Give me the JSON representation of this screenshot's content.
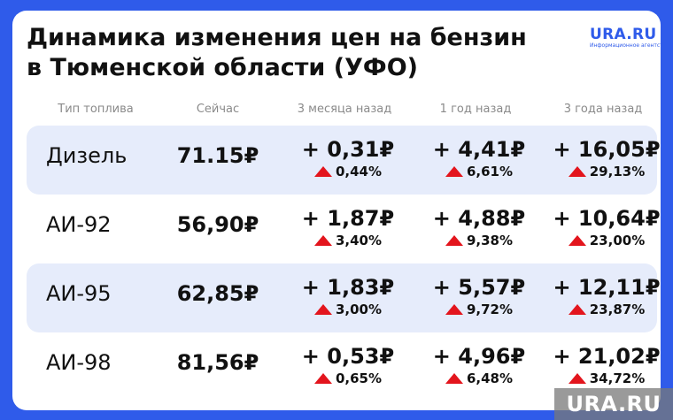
{
  "title_line1": "Динамика изменения цен на бензин",
  "title_line2": "в Тюменской области (УФО)",
  "brand": {
    "name": "URA.RU",
    "tagline": "Информационное агентство"
  },
  "columns": [
    "Тип топлива",
    "Сейчас",
    "3 месяца назад",
    "1 год назад",
    "3 года назад"
  ],
  "rows": [
    {
      "fuel": "Дизель",
      "now": "71.15₽",
      "changes": [
        {
          "abs": "+ 0,31₽",
          "pct": "0,44%"
        },
        {
          "abs": "+ 4,41₽",
          "pct": "6,61%"
        },
        {
          "abs": "+ 16,05₽",
          "pct": "29,13%"
        }
      ]
    },
    {
      "fuel": "АИ-92",
      "now": "56,90₽",
      "changes": [
        {
          "abs": "+ 1,87₽",
          "pct": "3,40%"
        },
        {
          "abs": "+ 4,88₽",
          "pct": "9,38%"
        },
        {
          "abs": "+ 10,64₽",
          "pct": "23,00%"
        }
      ]
    },
    {
      "fuel": "АИ-95",
      "now": "62,85₽",
      "changes": [
        {
          "abs": "+ 1,83₽",
          "pct": "3,00%"
        },
        {
          "abs": "+ 5,57₽",
          "pct": "9,72%"
        },
        {
          "abs": "+ 12,11₽",
          "pct": "23,87%"
        }
      ]
    },
    {
      "fuel": "АИ-98",
      "now": "81,56₽",
      "changes": [
        {
          "abs": "+ 0,53₽",
          "pct": "0,65%"
        },
        {
          "abs": "+ 4,96₽",
          "pct": "6,48%"
        },
        {
          "abs": "+ 21,02₽",
          "pct": "34,72%"
        }
      ]
    }
  ],
  "watermark": "URA.RU",
  "colors": {
    "background": "#2f5bea",
    "shaded_row": "#e6ecfb",
    "increase_triangle": "#e3151d"
  },
  "icons": {
    "increase": "red-up-triangle-icon"
  }
}
